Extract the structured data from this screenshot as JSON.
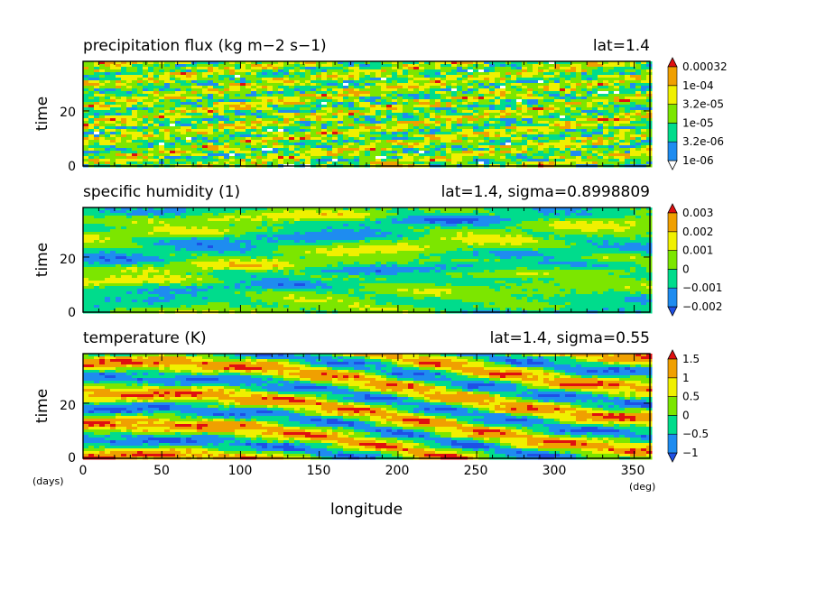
{
  "chart_data": [
    {
      "type": "heatmap",
      "title": "precipitation flux (kg m−2 s−1)",
      "annotation": "lat=1.4",
      "ylabel": "time",
      "ylim": [
        0,
        38
      ],
      "yticks": [
        "0",
        "20"
      ],
      "xlim": [
        0,
        360
      ],
      "colorbar_labels": [
        "1e-06",
        "3.2e-06",
        "1e-05",
        "3.2e-05",
        "1e-04",
        "0.00032"
      ],
      "colors": [
        "#ffffff",
        "#1e8cf0",
        "#00dc8c",
        "#7ce600",
        "#f0f000",
        "#f0a000",
        "#e01010"
      ],
      "pattern": "speckled"
    },
    {
      "type": "heatmap",
      "title": "specific humidity (1)",
      "annotation": "lat=1.4, sigma=0.8998809",
      "ylabel": "time",
      "ylim": [
        0,
        38
      ],
      "yticks": [
        "0",
        "20"
      ],
      "xlim": [
        0,
        360
      ],
      "colorbar_labels": [
        "−0.002",
        "−0.001",
        "0",
        "0.001",
        "0.002",
        "0.003"
      ],
      "colors": [
        "#1e50e6",
        "#1e8cf0",
        "#00dc8c",
        "#7ce600",
        "#f0f000",
        "#f0a000",
        "#e01010"
      ],
      "pattern": "blobs"
    },
    {
      "type": "heatmap",
      "title": "temperature (K)",
      "annotation": "lat=1.4, sigma=0.55",
      "ylabel": "time",
      "ylim": [
        0,
        38
      ],
      "yticks": [
        "0",
        "20"
      ],
      "xlabel": "longitude",
      "xticks": [
        "0",
        "50",
        "100",
        "150",
        "200",
        "250",
        "300",
        "350"
      ],
      "xlim": [
        0,
        360
      ],
      "xunit": "(deg)",
      "yunit": "(days)",
      "colorbar_labels": [
        "−1",
        "−0.5",
        "0",
        "0.5",
        "1",
        "1.5"
      ],
      "colors": [
        "#1e50e6",
        "#1e8cf0",
        "#00dc8c",
        "#7ce600",
        "#f0f000",
        "#f0a000",
        "#e01010"
      ],
      "pattern": "streaks"
    }
  ]
}
